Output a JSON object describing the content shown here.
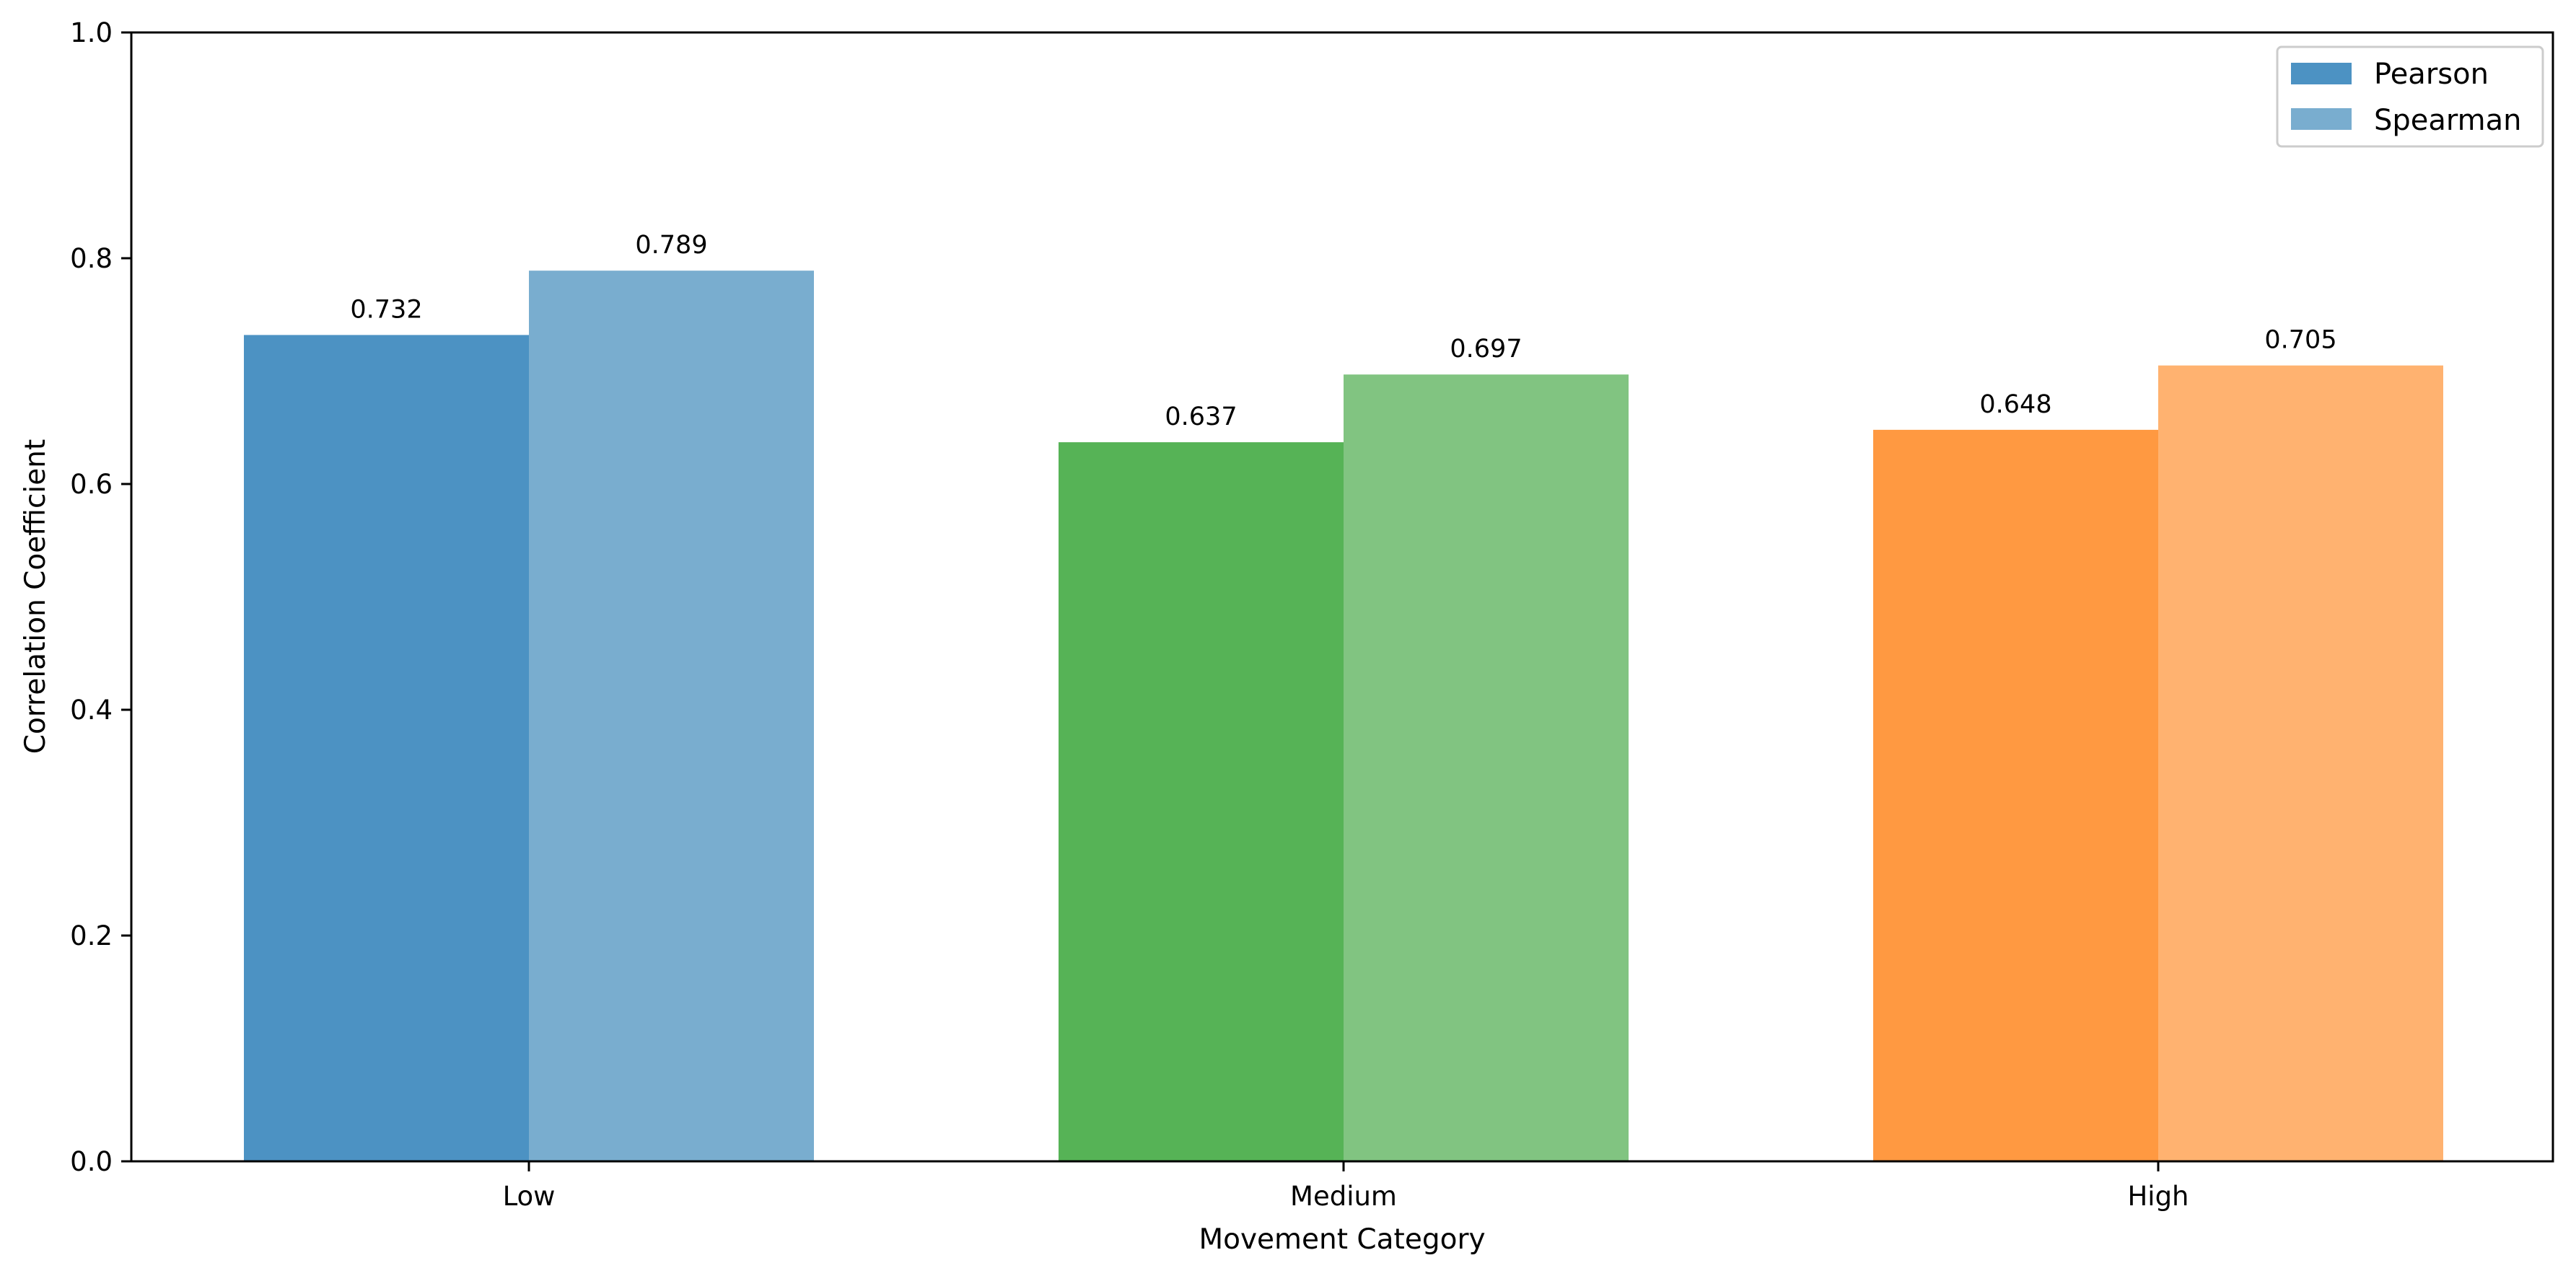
{
  "chart_data": {
    "type": "bar",
    "xlabel": "Movement Category",
    "ylabel": "Correlation Coefficient",
    "ylim": [
      0,
      1.0
    ],
    "yticks": [
      "0.0",
      "0.2",
      "0.4",
      "0.6",
      "0.8",
      "1.0"
    ],
    "grid": false,
    "legend_position": "top-right",
    "categories": [
      "Low",
      "Medium",
      "High"
    ],
    "series": [
      {
        "name": "Pearson",
        "values": [
          0.732,
          0.637,
          0.648
        ],
        "labels": [
          "0.732",
          "0.637",
          "0.648"
        ],
        "colors": [
          "#4c92c3",
          "#56b356",
          "#ff9941"
        ],
        "legend_color": "#4c92c3"
      },
      {
        "name": "Spearman",
        "values": [
          0.789,
          0.697,
          0.705
        ],
        "labels": [
          "0.789",
          "0.697",
          "0.705"
        ],
        "colors": [
          "#79adcf",
          "#81c481",
          "#ffb270"
        ],
        "legend_color": "#79adcf"
      }
    ]
  }
}
